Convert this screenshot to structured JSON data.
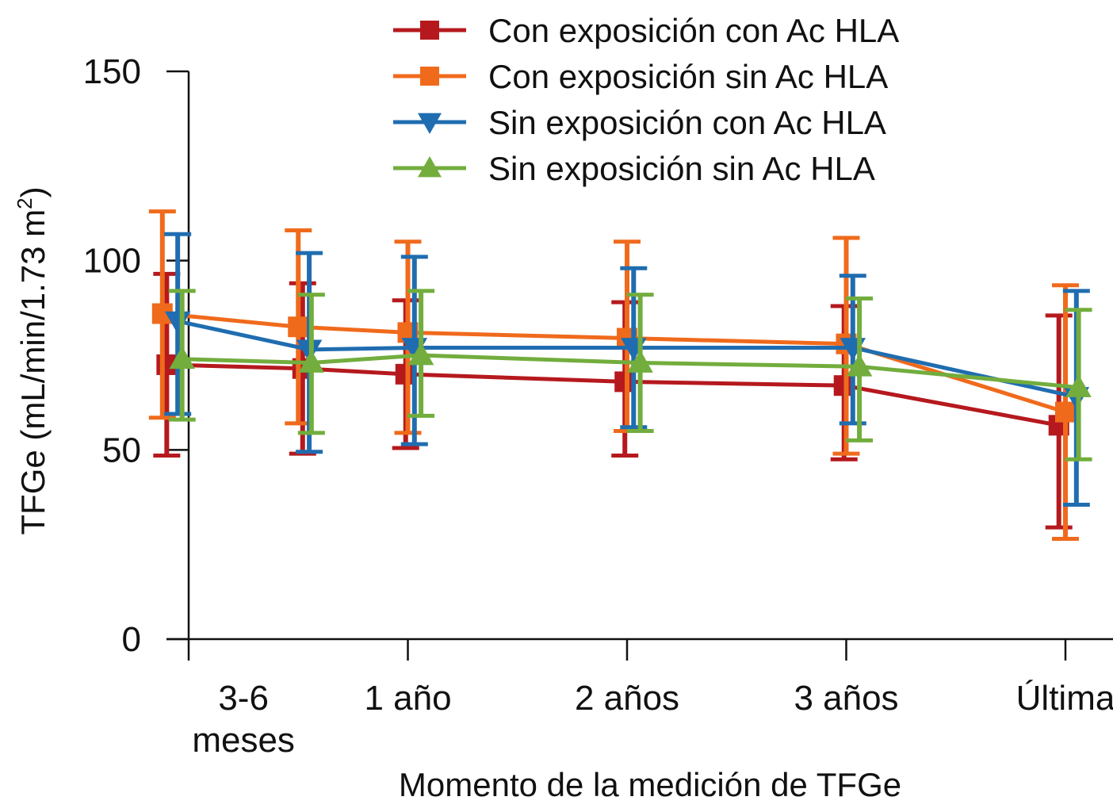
{
  "chart_data": {
    "type": "line",
    "title": "",
    "xlabel": "Momento de la medición de TFGe",
    "ylabel": "TFGe (mL/min/1.73 m²)",
    "ylabel_main": "TFGe (mL/min/1.73 m",
    "ylabel_sup": "2",
    "ylabel_close": ")",
    "ylim": [
      0,
      150
    ],
    "yticks": [
      0,
      50,
      100,
      150
    ],
    "ytick_labels": [
      "0",
      "50",
      "100",
      "150"
    ],
    "categories": [
      {
        "label": "3-6",
        "label2": "meses",
        "x": 0.25
      },
      {
        "label": "1 año",
        "label2": "",
        "x": 1
      },
      {
        "label": "2 años",
        "label2": "",
        "x": 2
      },
      {
        "label": "3 años",
        "label2": "",
        "x": 3
      },
      {
        "label": "Última",
        "label2": "",
        "x": 4
      }
    ],
    "xlim": [
      -0.3,
      4.3
    ],
    "xtick_positions": [
      0,
      1,
      2,
      3,
      4
    ],
    "legend_position": "top",
    "series": [
      {
        "name": "Con exposición con Ac HLA",
        "color": "#b5191e",
        "marker": "square",
        "x": [
          -0.1,
          0.52,
          0.99,
          1.99,
          2.99,
          3.97
        ],
        "y": [
          72.5,
          71.5,
          70,
          68,
          67,
          56.5
        ],
        "err_low": [
          48.5,
          49,
          50.5,
          48.5,
          47.5,
          29.5
        ],
        "err_high": [
          96.5,
          94,
          89.5,
          89,
          88,
          85.5
        ]
      },
      {
        "name": "Con exposición sin Ac HLA",
        "color": "#f06a1c",
        "marker": "square",
        "x": [
          -0.12,
          0.5,
          1.0,
          2.0,
          3.0,
          4.0
        ],
        "y": [
          86,
          82.5,
          81,
          79.5,
          78,
          60
        ],
        "err_low": [
          58.5,
          57,
          54.5,
          55,
          49,
          26.5
        ],
        "err_high": [
          113,
          108,
          105,
          105,
          106,
          93.5
        ]
      },
      {
        "name": "Sin exposición con Ac HLA",
        "color": "#1f6db0",
        "marker": "triangle-down",
        "x": [
          -0.05,
          0.55,
          1.03,
          2.03,
          3.03,
          4.05
        ],
        "y": [
          84,
          76.5,
          77,
          77,
          77,
          64
        ],
        "err_low": [
          59.5,
          49.5,
          51.5,
          56,
          57,
          35.5
        ],
        "err_high": [
          107,
          102,
          101,
          98,
          96,
          92
        ]
      },
      {
        "name": "Sin exposición sin Ac HLA",
        "color": "#72ad3d",
        "marker": "triangle-up",
        "x": [
          -0.03,
          0.56,
          1.06,
          2.06,
          3.06,
          4.06
        ],
        "y": [
          74,
          73,
          75,
          73,
          72,
          66.5
        ],
        "err_low": [
          58,
          54.5,
          59,
          55,
          52.5,
          47.5
        ],
        "err_high": [
          92,
          91,
          92,
          91,
          90,
          87
        ]
      }
    ]
  }
}
